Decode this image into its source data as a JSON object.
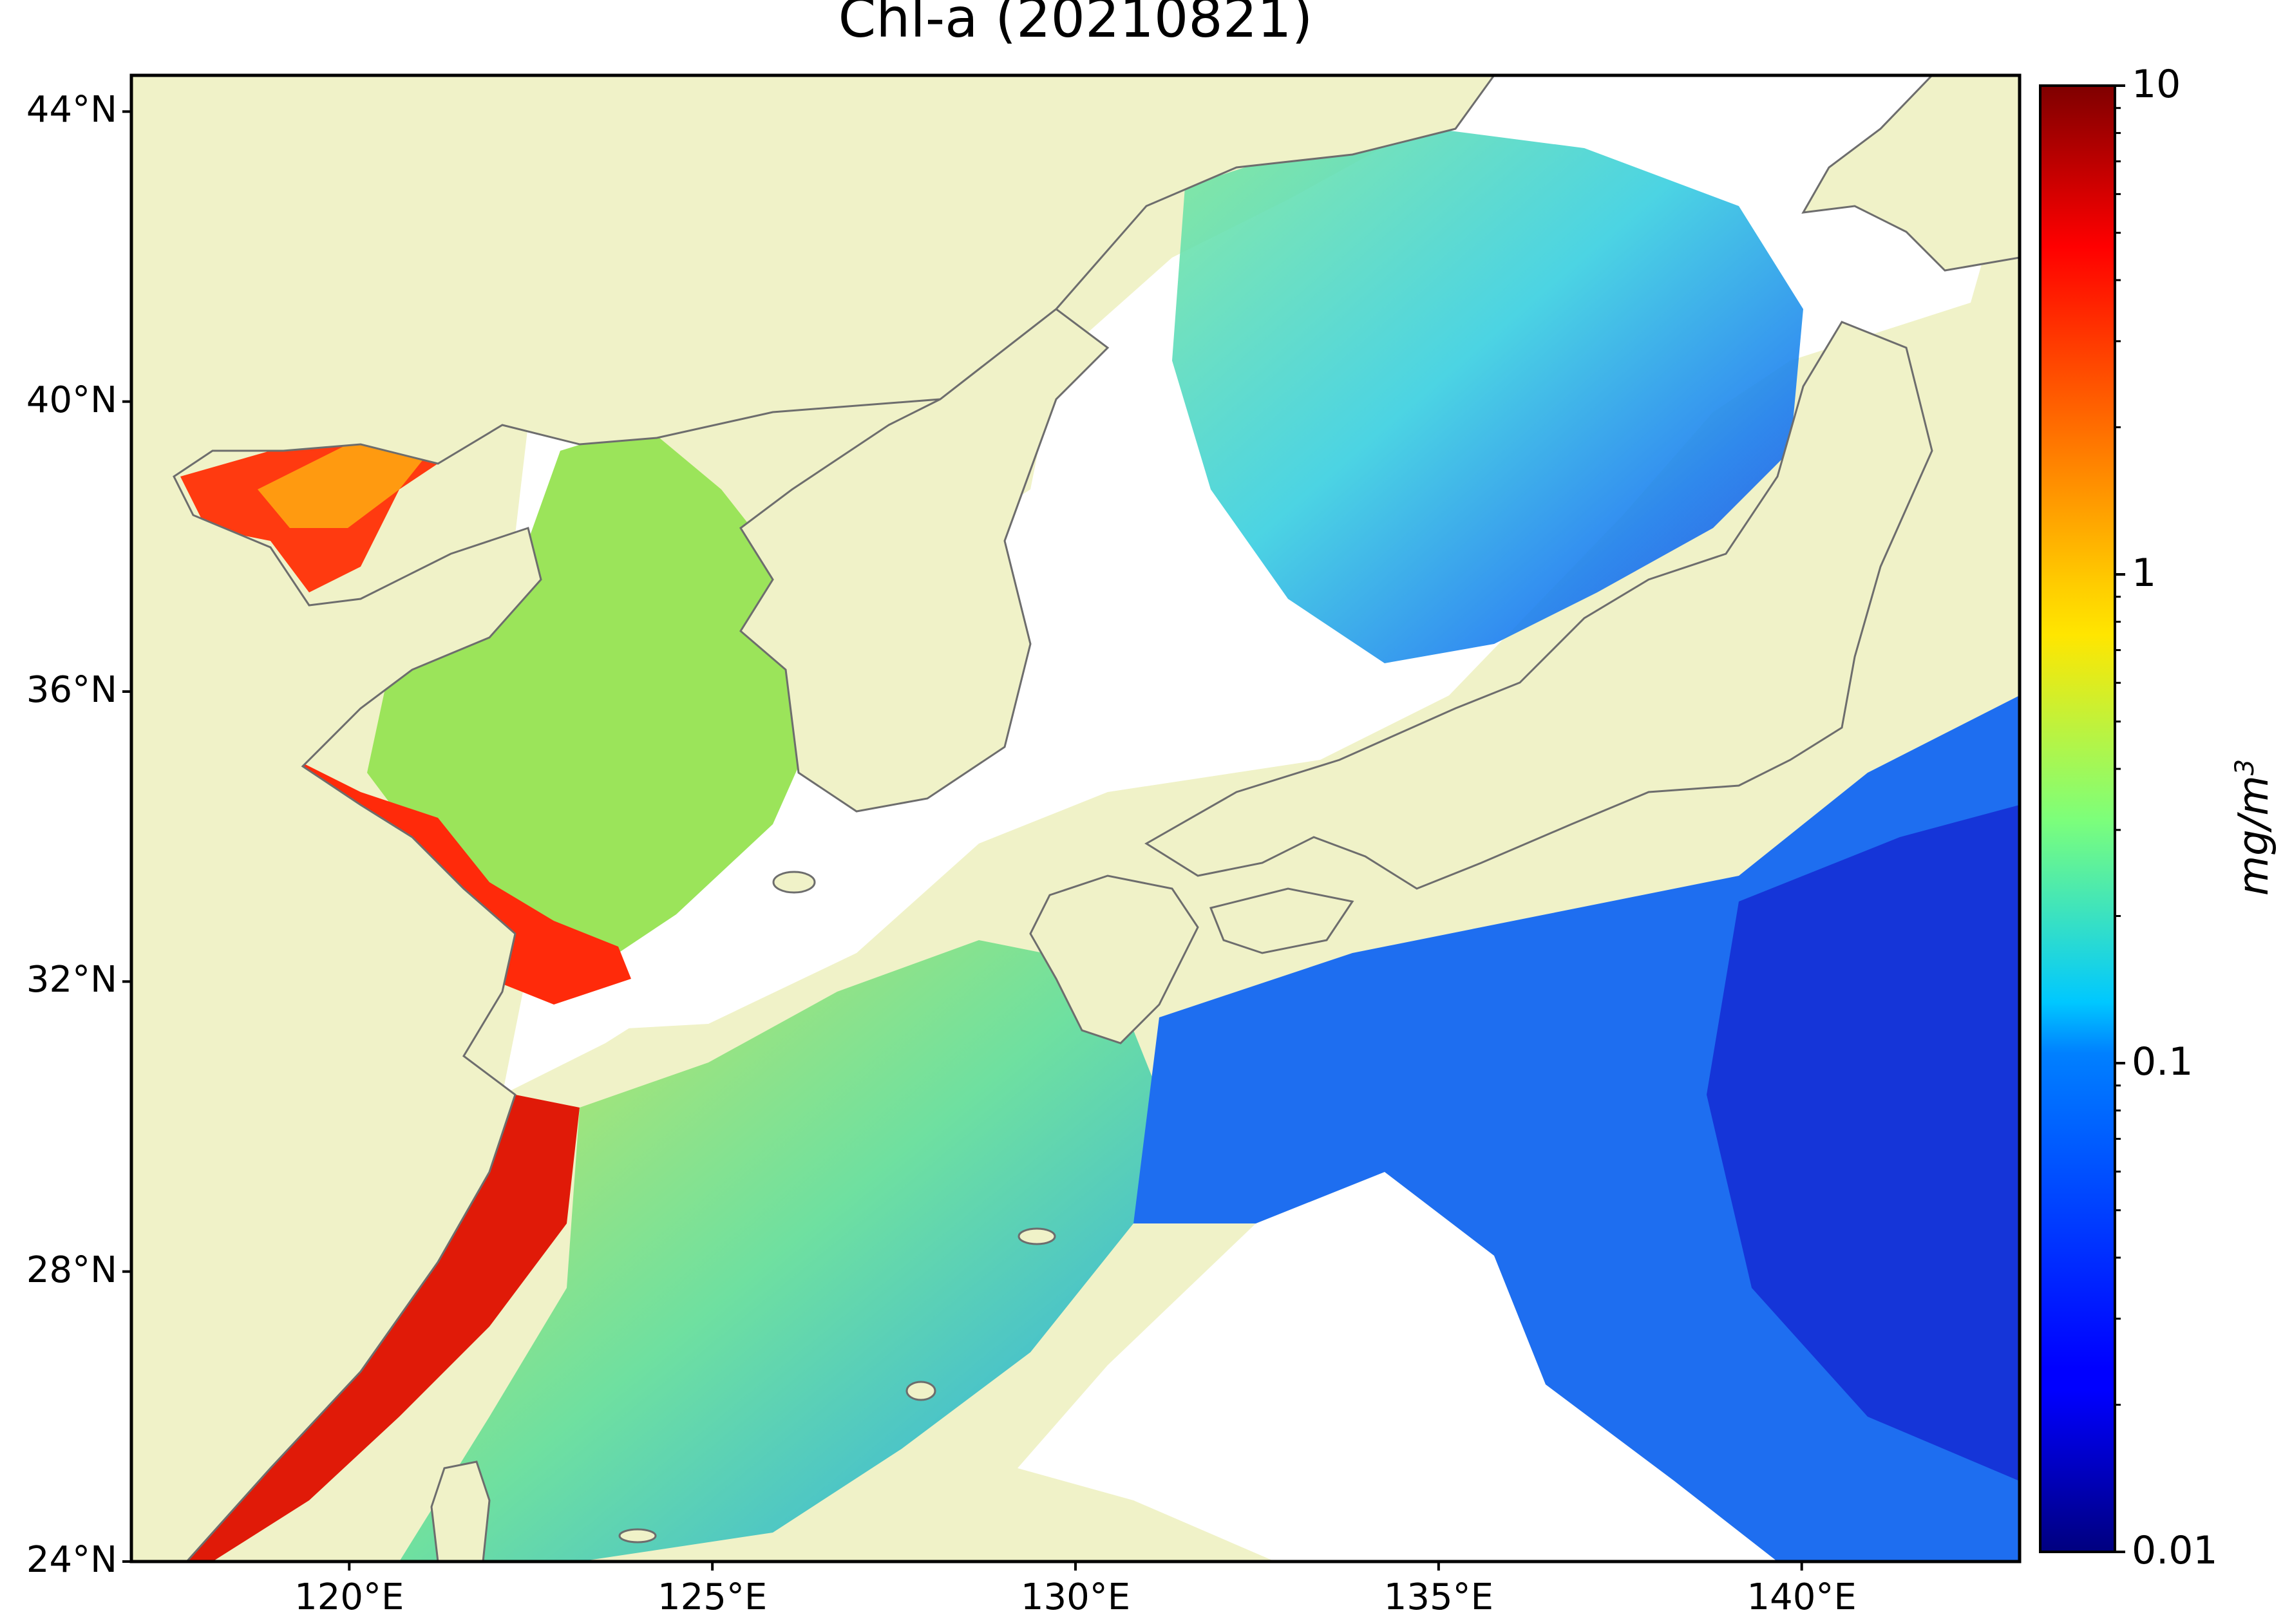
{
  "title": "Chl-a (20210821)",
  "map": {
    "lon_range": [
      117,
      143
    ],
    "lat_range": [
      24,
      44.5
    ],
    "land_color": "#f0f2c8",
    "no_data_color": "#ffffff",
    "coast_color": "#6d6d6d",
    "lat_ticks": [
      {
        "value": 44,
        "label": "44°N"
      },
      {
        "value": 40,
        "label": "40°N"
      },
      {
        "value": 36,
        "label": "36°N"
      },
      {
        "value": 32,
        "label": "32°N"
      },
      {
        "value": 28,
        "label": "28°N"
      },
      {
        "value": 24,
        "label": "24°N"
      }
    ],
    "lon_ticks": [
      {
        "value": 120,
        "label": "120°E"
      },
      {
        "value": 125,
        "label": "125°E"
      },
      {
        "value": 130,
        "label": "130°E"
      },
      {
        "value": 135,
        "label": "135°E"
      },
      {
        "value": 140,
        "label": "140°E"
      }
    ]
  },
  "colorbar": {
    "scale": "log",
    "range": [
      0.01,
      10
    ],
    "colormap": "jet",
    "unit": "mg/m",
    "unit_sup": "3",
    "ticks": [
      {
        "value": 10,
        "label": "10"
      },
      {
        "value": 1,
        "label": "1"
      },
      {
        "value": 0.1,
        "label": "0.1"
      },
      {
        "value": 0.01,
        "label": "0.01"
      }
    ]
  }
}
